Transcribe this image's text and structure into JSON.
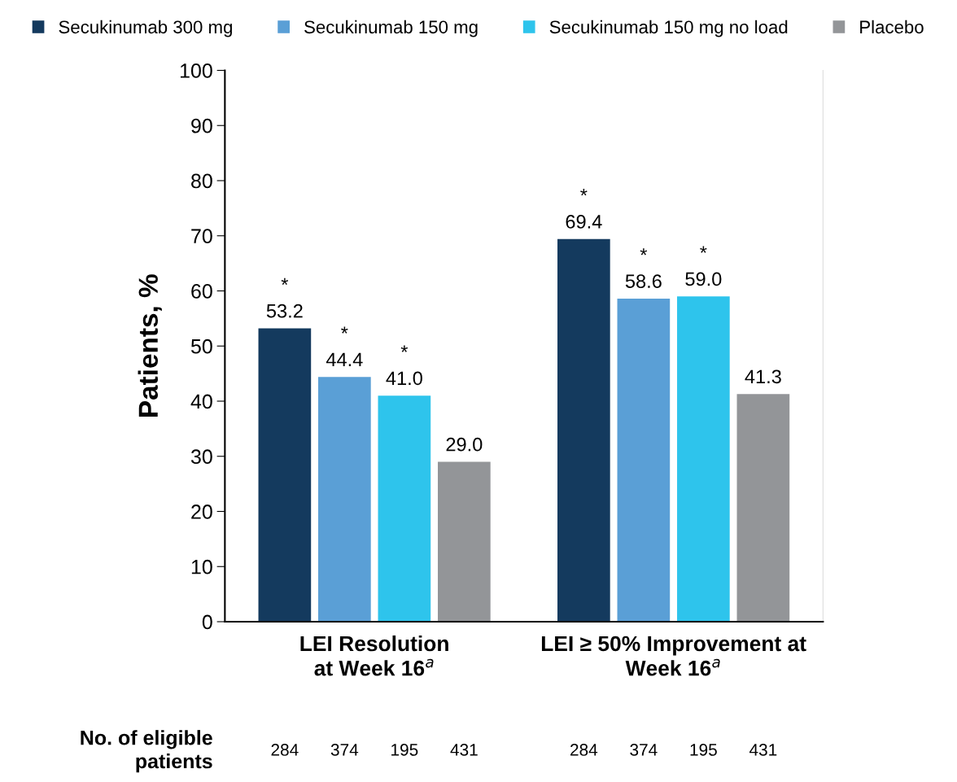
{
  "chart_data": {
    "type": "bar",
    "ylabel": "Patients, %",
    "categories": [
      "LEI Resolution\nat Week 16$^{a}$",
      "LEI ≥ 50% Improvement at\nWeek 16$^{a}$"
    ],
    "series": [
      {
        "name": "Secukinumab 300 mg",
        "color": "#143a5e",
        "values": [
          53.2,
          69.4
        ],
        "value_labels": [
          "*\n53.2",
          "*\n69.4"
        ]
      },
      {
        "name": "Secukinumab 150 mg",
        "color": "#5a9fd6",
        "values": [
          44.4,
          58.6
        ],
        "value_labels": [
          "*\n44.4",
          "*\n58.6"
        ]
      },
      {
        "name": "Secukinumab 150 mg no load",
        "color": "#2ec4ec",
        "values": [
          41.0,
          59.0
        ],
        "value_labels": [
          "*\n41.0",
          "*\n59.0"
        ]
      },
      {
        "name": "Placebo",
        "color": "#939598",
        "values": [
          29.0,
          41.3
        ],
        "value_labels": [
          "29.0",
          "41.3"
        ]
      }
    ],
    "ylim": [
      0,
      100
    ],
    "yticks": [
      0,
      10,
      20,
      30,
      40,
      50,
      60,
      70,
      80,
      90,
      100
    ],
    "grid": false,
    "legend": "top",
    "annotations": [
      "No. of eligible\npatients",
      "284",
      "374",
      "195",
      "431",
      "284",
      "374",
      "195",
      "431"
    ]
  }
}
